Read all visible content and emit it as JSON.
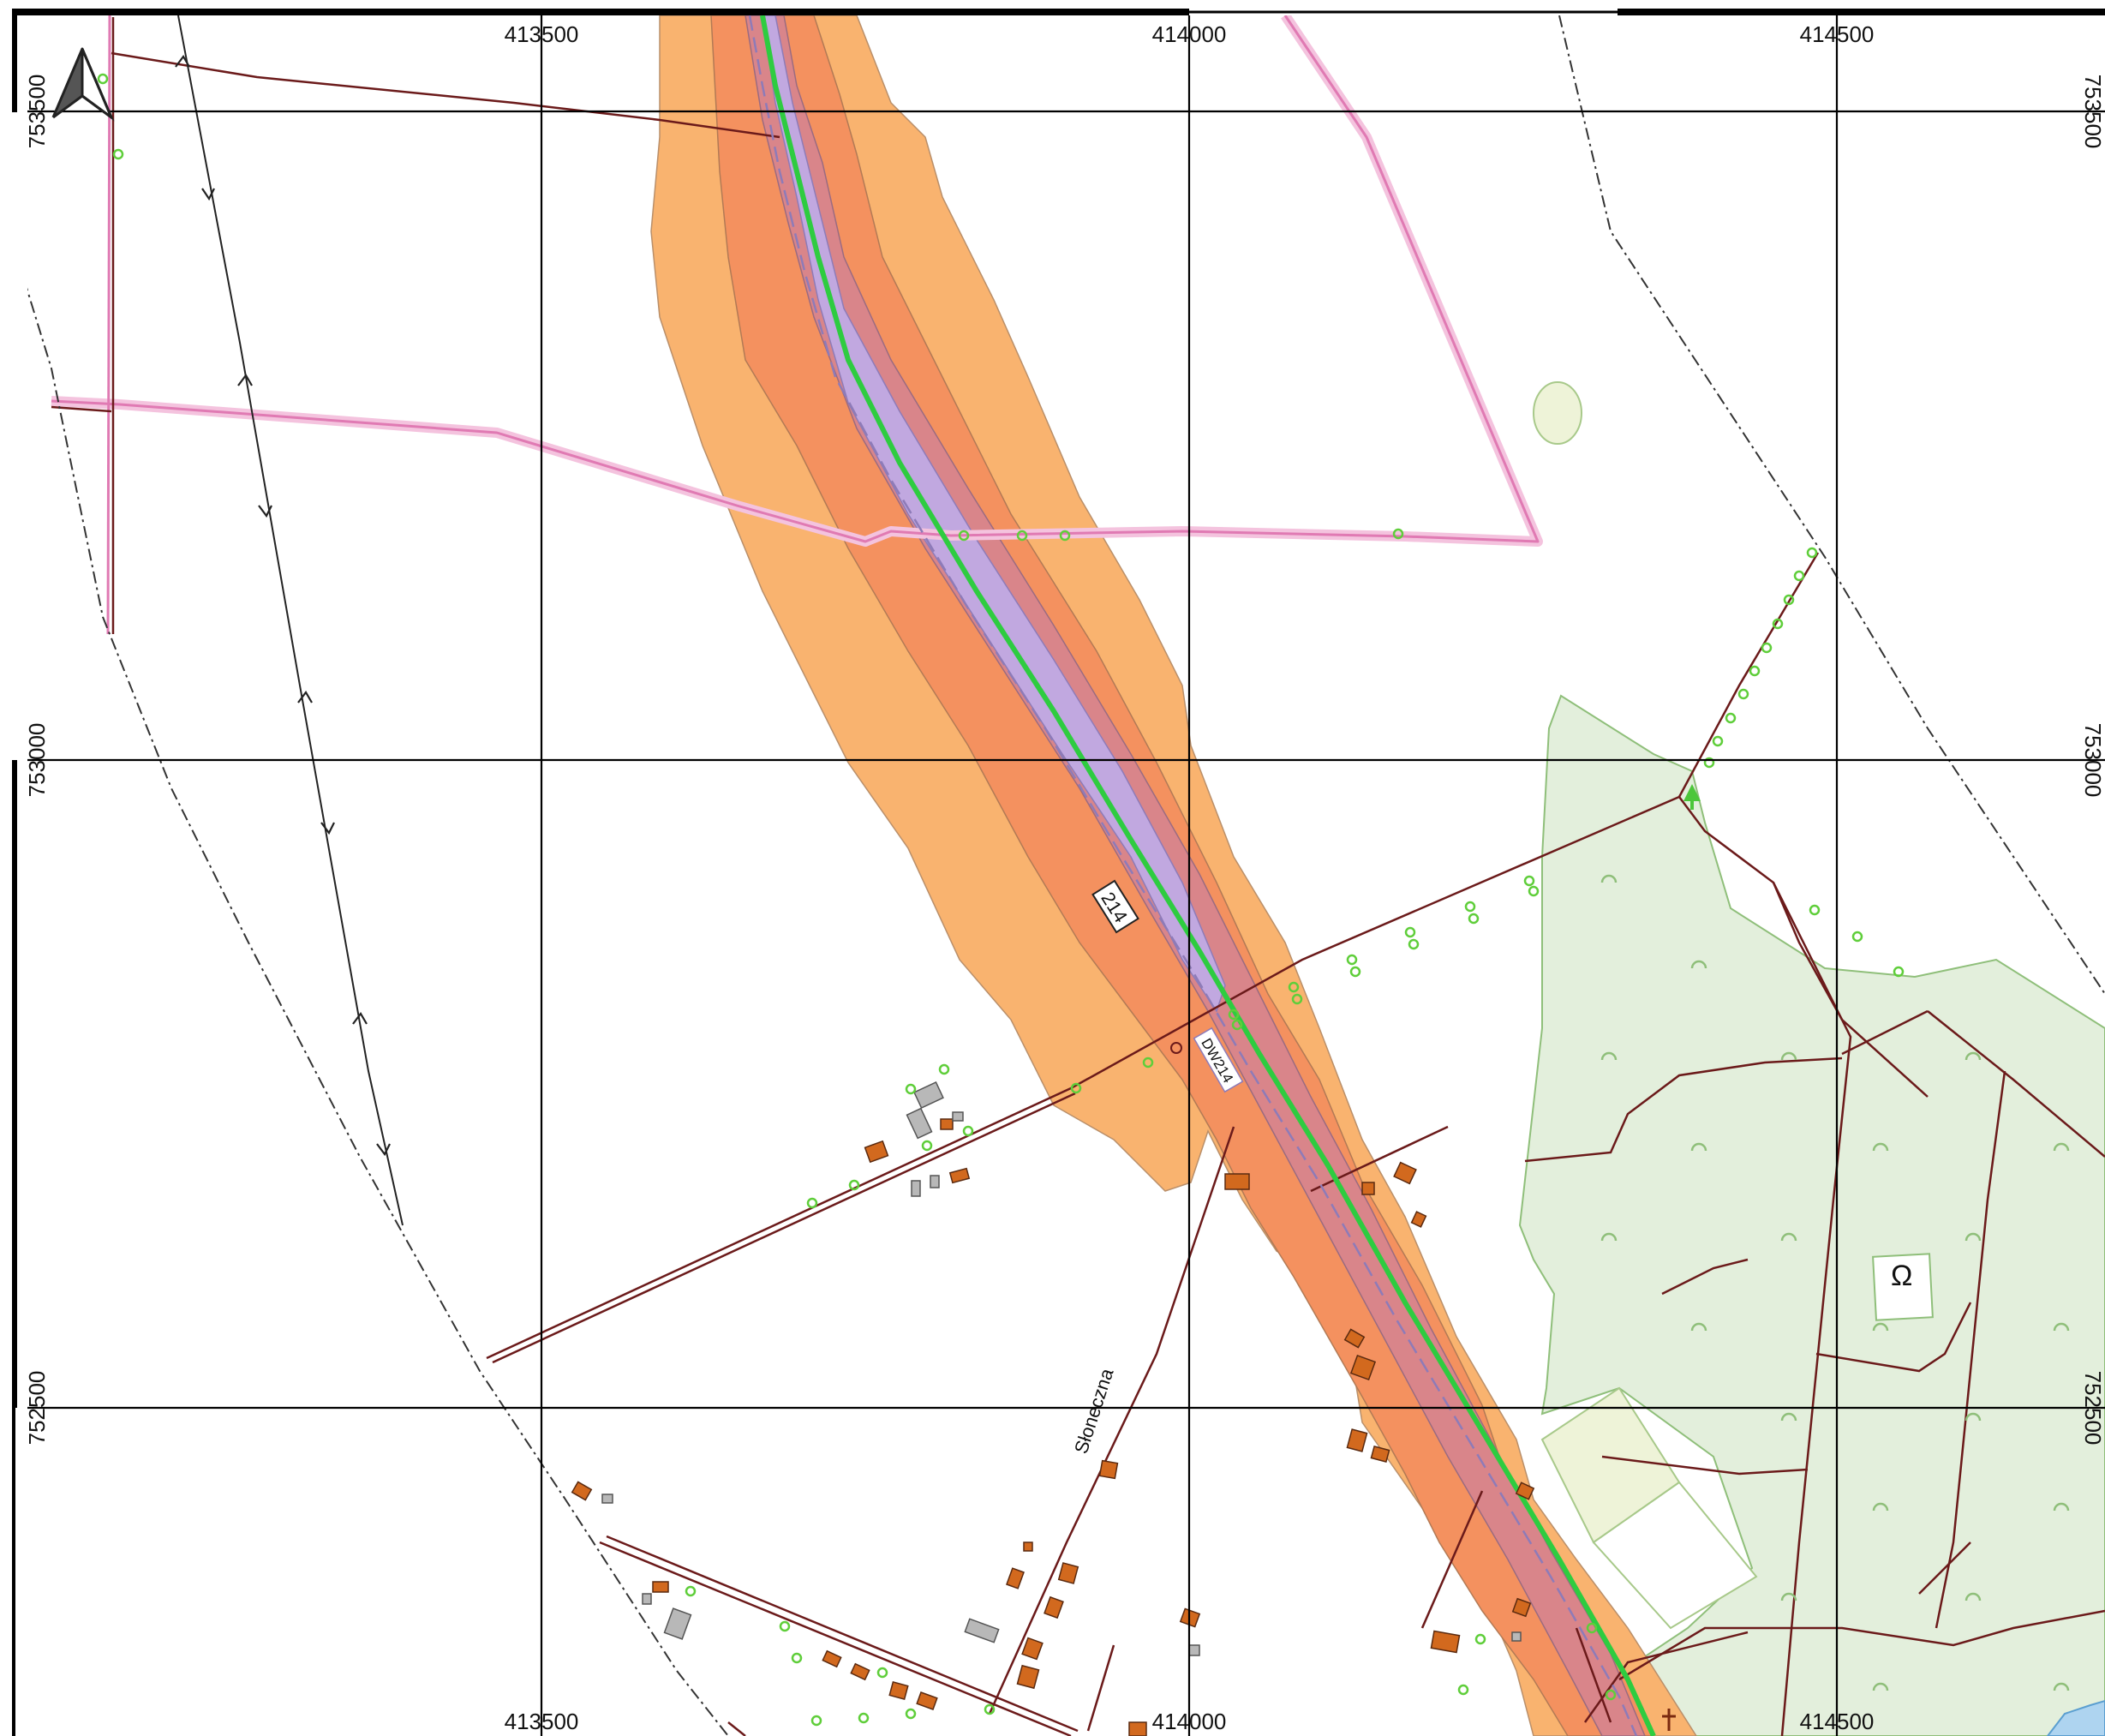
{
  "map": {
    "x_labels": [
      "413500",
      "414000",
      "414500"
    ],
    "y_labels": [
      "753500",
      "753000",
      "752500"
    ],
    "road_number": "214",
    "road_code": "DW214",
    "street_name": "Słoneczna",
    "icons": [
      "north-arrow-icon",
      "monument-icon",
      "cross-icon",
      "tree-icon"
    ],
    "colors": {
      "buffer_outer": "#f9b36f",
      "buffer_mid": "#f4915f",
      "buffer_inner": "#d9858a",
      "road_zone": "#c1a8e0",
      "road_center": "#2ecc40",
      "forest": "#e3efdc",
      "boundary_pink": "#e07ab3",
      "path_brown": "#6b1a1a",
      "building": "#d2691e"
    }
  }
}
